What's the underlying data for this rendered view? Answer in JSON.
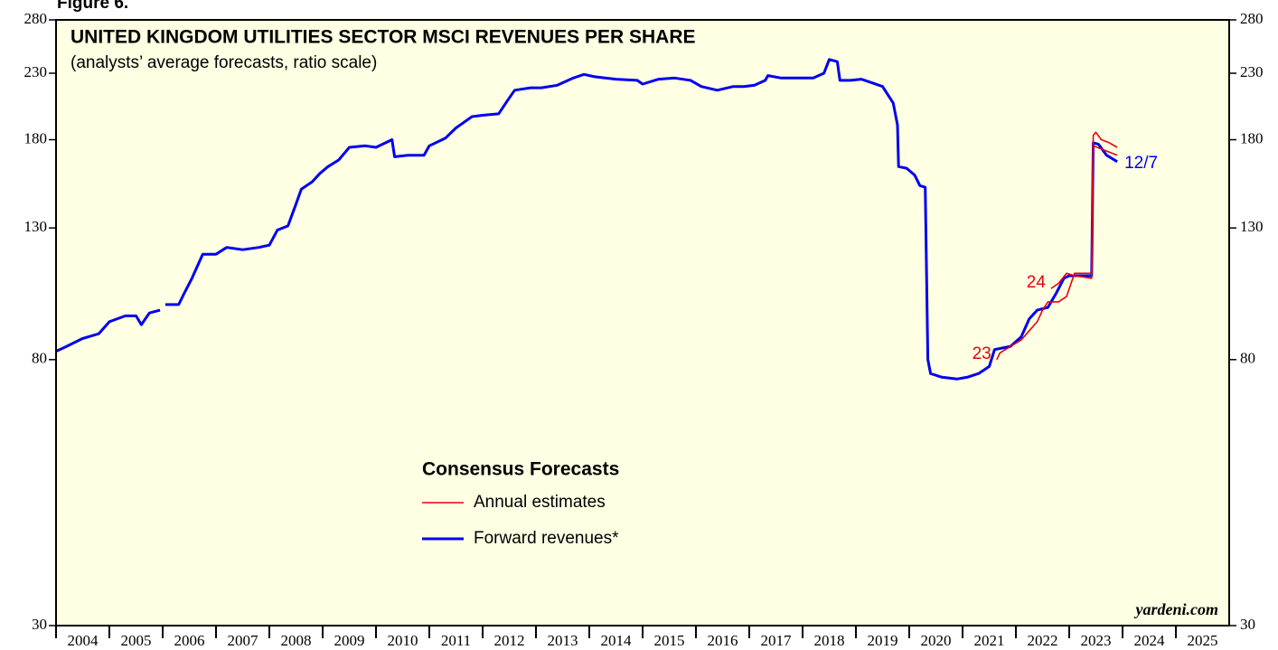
{
  "chart_data": {
    "type": "line",
    "figure_label": "Figure 6.",
    "title": "UNITED KINGDOM UTILITIES SECTOR MSCI REVENUES PER SHARE",
    "subtitle": "(analysts’ average forecasts, ratio scale)",
    "source": "yardeni.com",
    "log_scale": true,
    "background": "#ffffe3",
    "xlim": [
      2004,
      2026
    ],
    "xticks": [
      2004,
      2005,
      2006,
      2007,
      2008,
      2009,
      2010,
      2011,
      2012,
      2013,
      2014,
      2015,
      2016,
      2017,
      2018,
      2019,
      2020,
      2021,
      2022,
      2023,
      2024,
      2025
    ],
    "ylim": [
      30,
      280
    ],
    "yticks": [
      30,
      80,
      130,
      180,
      230,
      280
    ],
    "legend_title": "Consensus Forecasts",
    "legend": [
      {
        "label": "Annual estimates",
        "color": "#e8000b"
      },
      {
        "label": "Forward revenues*",
        "color": "#0000ee"
      }
    ],
    "series": [
      {
        "name": "Forward revenues*",
        "color": "#0000ee",
        "end_label": "12/7",
        "x": [
          2004.0,
          2004.2,
          2004.5,
          2004.8,
          2005.0,
          2005.3,
          2005.5,
          2005.6,
          2005.75,
          2005.95,
          2005.98,
          2006.05,
          2006.3,
          2006.4,
          2006.55,
          2006.75,
          2007.0,
          2007.2,
          2007.5,
          2007.8,
          2008.0,
          2008.15,
          2008.35,
          2008.5,
          2008.6,
          2008.8,
          2008.95,
          2009.1,
          2009.3,
          2009.5,
          2009.8,
          2010.0,
          2010.3,
          2010.35,
          2010.6,
          2010.9,
          2011.0,
          2011.3,
          2011.5,
          2011.8,
          2012.0,
          2012.3,
          2012.45,
          2012.6,
          2012.9,
          2013.1,
          2013.4,
          2013.7,
          2013.9,
          2014.1,
          2014.5,
          2014.9,
          2015.0,
          2015.3,
          2015.6,
          2015.9,
          2016.1,
          2016.4,
          2016.7,
          2016.9,
          2017.1,
          2017.3,
          2017.35,
          2017.6,
          2017.9,
          2018.2,
          2018.4,
          2018.5,
          2018.65,
          2018.7,
          2018.9,
          2019.1,
          2019.3,
          2019.5,
          2019.7,
          2019.78,
          2019.8,
          2019.95,
          2020.1,
          2020.2,
          2020.3,
          2020.35,
          2020.4,
          2020.6,
          2020.9,
          2021.1,
          2021.3,
          2021.5,
          2021.6,
          2021.9,
          2022.1,
          2022.25,
          2022.4,
          2022.6,
          2022.75,
          2022.9,
          2023.0,
          2023.42,
          2023.45,
          2023.55,
          2023.7,
          2023.9
        ],
        "values": [
          82.5,
          84,
          86.5,
          88,
          92,
          94,
          94,
          91,
          95,
          96,
          null,
          98,
          98,
          102,
          108,
          118,
          118,
          121,
          120,
          121,
          122,
          129,
          131,
          142,
          150,
          154,
          159,
          163,
          167,
          175,
          176,
          175,
          180,
          169,
          170,
          170,
          176,
          181,
          188,
          196,
          197,
          198,
          207,
          216,
          218,
          218,
          220,
          226,
          229,
          227,
          225,
          224,
          221,
          225,
          226,
          224,
          219,
          216,
          219,
          219,
          220,
          224,
          228,
          226,
          226,
          226,
          230,
          242,
          240,
          224,
          224,
          225,
          222,
          219,
          206,
          190,
          163,
          162,
          158,
          152,
          151,
          80,
          76,
          75,
          74.5,
          75,
          76,
          78,
          83,
          84,
          87,
          93,
          96,
          97,
          102,
          108,
          109,
          109,
          178,
          177,
          170,
          166
        ]
      },
      {
        "name": "23",
        "color": "#e8000b",
        "x": [
          2021.64,
          2021.7,
          2021.9,
          2022.1,
          2022.25,
          2022.4,
          2022.5,
          2022.6,
          2022.8,
          2022.95,
          2023.1,
          2023.42,
          2023.45,
          2023.6,
          2023.9
        ],
        "values": [
          80,
          82,
          84,
          86,
          89,
          92,
          96,
          99,
          99,
          101,
          110,
          110,
          176,
          174,
          170
        ]
      },
      {
        "name": "24",
        "color": "#e8000b",
        "x": [
          2022.66,
          2022.8,
          2022.95,
          2023.1,
          2023.42,
          2023.45,
          2023.5,
          2023.6,
          2023.75,
          2023.9
        ],
        "values": [
          104,
          106,
          110,
          109,
          108,
          183,
          185,
          180,
          178,
          175
        ]
      }
    ]
  }
}
